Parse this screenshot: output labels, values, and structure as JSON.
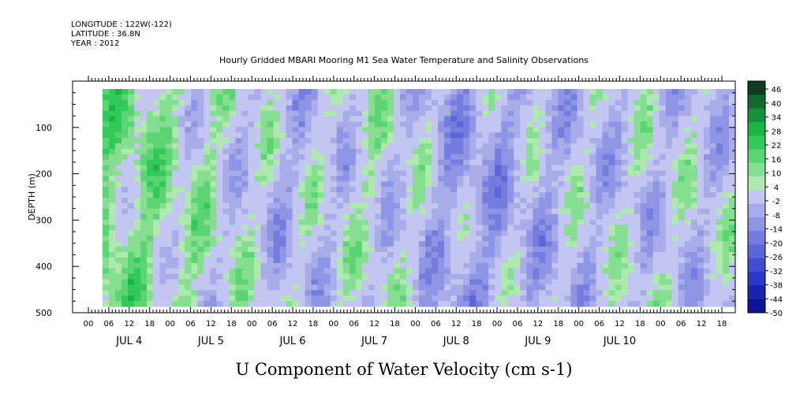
{
  "header": {
    "longitude": "LONGITUDE : 122W(-122)",
    "latitude": "LATITUDE : 36.8N",
    "year": "YEAR : 2012"
  },
  "chart_data": {
    "type": "heatmap",
    "title": "Hourly Gridded MBARI Mooring M1 Sea Water Temperature and Salinity Observations",
    "xlabel": "U Component of Water Velocity (cm s-1)",
    "ylabel": "DEPTH (m)",
    "ylim": [
      0,
      500
    ],
    "y_inverted": true,
    "y_ticks": [
      100,
      200,
      300,
      400,
      500
    ],
    "x_hour_ticks": [
      "00",
      "06",
      "12",
      "18",
      "00",
      "06",
      "12",
      "18",
      "00",
      "06",
      "12",
      "18",
      "00",
      "06",
      "12",
      "18",
      "00",
      "06",
      "12",
      "18",
      "00",
      "06",
      "12",
      "18",
      "00",
      "06",
      "12",
      "18",
      "00",
      "06",
      "12",
      "18"
    ],
    "x_day_labels": [
      "JUL  4",
      "JUL  5",
      "JUL  6",
      "JUL  7",
      "JUL  8",
      "JUL  9",
      "JUL 10"
    ],
    "colorbar": {
      "labels": [
        "46",
        "40",
        "34",
        "28",
        "22",
        "16",
        "10",
        "4",
        "-2",
        "-8",
        "-14",
        "-20",
        "-26",
        "-32",
        "-38",
        "-44",
        "-50"
      ],
      "green_colors": [
        "#0d3d1c",
        "#116a2c",
        "#15913b",
        "#1ab447",
        "#33c85a",
        "#5bd473",
        "#86de90",
        "#aee9b0"
      ],
      "blue_colors": [
        "#c3c6f0",
        "#a8adea",
        "#8f95e4",
        "#747ddd",
        "#5a65d6",
        "#3f4dd0",
        "#2a38c6",
        "#1824b0",
        "#0c1593"
      ]
    },
    "data_pattern": {
      "columns": 100,
      "rows": 40,
      "day_columns": [
        {
          "day": "JUL 4",
          "u_mean_cm_s": 12
        },
        {
          "day": "JUL 5",
          "u_mean_cm_s": 4
        },
        {
          "day": "JUL 6",
          "u_mean_cm_s": -4
        },
        {
          "day": "JUL 7",
          "u_mean_cm_s": 2
        },
        {
          "day": "JUL 8",
          "u_mean_cm_s": -10
        },
        {
          "day": "JUL 9",
          "u_mean_cm_s": -4
        },
        {
          "day": "JUL 10",
          "u_mean_cm_s": -2
        }
      ]
    }
  }
}
